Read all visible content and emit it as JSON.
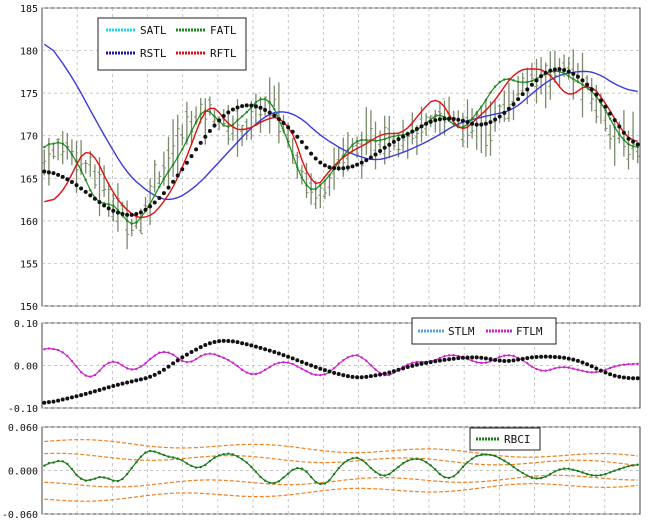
{
  "colors": {
    "satl": "#22d3ee",
    "fatl": "#1e8a1e",
    "rstl": "#1a1aa8",
    "rftl": "#e01010",
    "price_bars": "#7a8a6a",
    "stlm": "#5aa0e0",
    "ftlm": "#cc22cc",
    "rbci": "#1a7a1a",
    "rbci_bands": "#f08020",
    "grid": "#b4b4b4",
    "black_dots": "#111111",
    "blue_curve": "#3a3ae0"
  },
  "chart_data": [
    {
      "type": "line",
      "panel": "price",
      "ylim": [
        150,
        185
      ],
      "y_ticks": [
        "150",
        "155",
        "160",
        "165",
        "170",
        "175",
        "180",
        "185"
      ],
      "legend": [
        "SATL",
        "FATL",
        "RSTL",
        "RFTL"
      ],
      "legend_placement": "top-left",
      "grid": true,
      "n_bars": 130,
      "price_anchors": [
        [
          0,
          167
        ],
        [
          5,
          169
        ],
        [
          10,
          166
        ],
        [
          14,
          163
        ],
        [
          18,
          160
        ],
        [
          21,
          160
        ],
        [
          24,
          165
        ],
        [
          28,
          168
        ],
        [
          32,
          172
        ],
        [
          36,
          173
        ],
        [
          40,
          171
        ],
        [
          44,
          171
        ],
        [
          47,
          173
        ],
        [
          50,
          174
        ],
        [
          53,
          170
        ],
        [
          56,
          166
        ],
        [
          59,
          163
        ],
        [
          62,
          165
        ],
        [
          65,
          168
        ],
        [
          70,
          169
        ],
        [
          75,
          170
        ],
        [
          80,
          170
        ],
        [
          84,
          171
        ],
        [
          88,
          173
        ],
        [
          92,
          171
        ],
        [
          96,
          171
        ],
        [
          100,
          173
        ],
        [
          104,
          176
        ],
        [
          108,
          177
        ],
        [
          112,
          178
        ],
        [
          116,
          177
        ],
        [
          120,
          174
        ],
        [
          124,
          170
        ],
        [
          129,
          168.5
        ]
      ],
      "series": [
        {
          "name": "RSTL",
          "style": "smooth line",
          "anchors": [
            [
              0,
              181.5
            ],
            [
              6,
              177
            ],
            [
              12,
              171
            ],
            [
              18,
              165.5
            ],
            [
              24,
              162.8
            ],
            [
              28,
              162.3
            ],
            [
              33,
              164
            ],
            [
              39,
              167.5
            ],
            [
              45,
              171
            ],
            [
              50,
              173
            ],
            [
              55,
              172.5
            ],
            [
              60,
              170
            ],
            [
              66,
              168
            ],
            [
              72,
              167
            ],
            [
              78,
              168
            ],
            [
              84,
              169.5
            ],
            [
              90,
              171.5
            ],
            [
              96,
              172.3
            ],
            [
              102,
              173
            ],
            [
              106,
              175
            ],
            [
              111,
              177
            ],
            [
              116,
              177.6
            ],
            [
              120,
              177.5
            ],
            [
              124,
              176
            ],
            [
              129,
              175
            ]
          ]
        },
        {
          "name": "RFTL",
          "style": "smooth line",
          "anchors": [
            [
              0,
              162
            ],
            [
              4,
              163
            ],
            [
              8,
              168
            ],
            [
              10,
              169
            ],
            [
              14,
              164
            ],
            [
              18,
              161
            ],
            [
              22,
              160
            ],
            [
              26,
              162
            ],
            [
              30,
              166
            ],
            [
              34,
              172
            ],
            [
              36,
              174.5
            ],
            [
              40,
              171
            ],
            [
              44,
              170.5
            ],
            [
              48,
              172
            ],
            [
              52,
              172.3
            ],
            [
              56,
              168
            ],
            [
              58,
              163
            ],
            [
              62,
              166
            ],
            [
              66,
              168
            ],
            [
              70,
              169
            ],
            [
              74,
              170.5
            ],
            [
              78,
              170
            ],
            [
              82,
              173
            ],
            [
              86,
              175
            ],
            [
              90,
              170
            ],
            [
              94,
              172
            ],
            [
              98,
              174
            ],
            [
              102,
              177.5
            ],
            [
              106,
              178
            ],
            [
              110,
              177.5
            ],
            [
              114,
              174
            ],
            [
              118,
              176.5
            ],
            [
              122,
              174
            ],
            [
              126,
              170
            ],
            [
              129,
              169
            ]
          ]
        },
        {
          "name": "SATL",
          "style": "dotted line",
          "anchors": [
            [
              0,
              166
            ],
            [
              5,
              165
            ],
            [
              10,
              163
            ],
            [
              15,
              161
            ],
            [
              20,
              160.5
            ],
            [
              25,
              162.5
            ],
            [
              30,
              166
            ],
            [
              35,
              170
            ],
            [
              40,
              173
            ],
            [
              45,
              173.8
            ],
            [
              50,
              172.5
            ],
            [
              55,
              170
            ],
            [
              60,
              166.5
            ],
            [
              65,
              166
            ],
            [
              70,
              167
            ],
            [
              75,
              169
            ],
            [
              80,
              170.5
            ],
            [
              85,
              172
            ],
            [
              90,
              172
            ],
            [
              95,
              171
            ],
            [
              100,
              172.5
            ],
            [
              105,
              175.5
            ],
            [
              110,
              178
            ],
            [
              115,
              177.5
            ],
            [
              120,
              175
            ],
            [
              125,
              171
            ],
            [
              129,
              168.3
            ]
          ]
        },
        {
          "name": "FATL",
          "style": "line",
          "anchors": [
            [
              0,
              168
            ],
            [
              3,
              170
            ],
            [
              6,
              168
            ],
            [
              9,
              165
            ],
            [
              12,
              161
            ],
            [
              15,
              163
            ],
            [
              18,
              159
            ],
            [
              21,
              160
            ],
            [
              24,
              163
            ],
            [
              27,
              166
            ],
            [
              30,
              168
            ],
            [
              33,
              172
            ],
            [
              36,
              174
            ],
            [
              39,
              170
            ],
            [
              42,
              172
            ],
            [
              45,
              173
            ],
            [
              48,
              175.5
            ],
            [
              51,
              172
            ],
            [
              54,
              168
            ],
            [
              57,
              163
            ],
            [
              60,
              164
            ],
            [
              63,
              166
            ],
            [
              66,
              168.5
            ],
            [
              69,
              170
            ],
            [
              72,
              169
            ],
            [
              75,
              170
            ],
            [
              78,
              170
            ],
            [
              81,
              170.5
            ],
            [
              84,
              172
            ],
            [
              87,
              173
            ],
            [
              90,
              170
            ],
            [
              93,
              172
            ],
            [
              96,
              174
            ],
            [
              99,
              177
            ],
            [
              102,
              176.5
            ],
            [
              105,
              176
            ],
            [
              108,
              177
            ],
            [
              111,
              178
            ],
            [
              114,
              177
            ],
            [
              117,
              176
            ],
            [
              120,
              175
            ],
            [
              123,
              172
            ],
            [
              126,
              169
            ],
            [
              129,
              168.5
            ]
          ]
        }
      ]
    },
    {
      "type": "line",
      "panel": "oscillator",
      "ylim": [
        -0.1,
        0.1
      ],
      "y_ticks": [
        "0.10",
        "0.00",
        "-0.10"
      ],
      "legend": [
        "STLM",
        "FTLM"
      ],
      "legend_placement": "top-right",
      "grid": true,
      "series": [
        {
          "name": "STLM",
          "style": "dotted line",
          "anchors": [
            [
              0,
              -0.09
            ],
            [
              8,
              -0.07
            ],
            [
              16,
              -0.045
            ],
            [
              24,
              -0.025
            ],
            [
              30,
              0.02
            ],
            [
              36,
              0.055
            ],
            [
              40,
              0.06
            ],
            [
              46,
              0.045
            ],
            [
              52,
              0.025
            ],
            [
              58,
              0.0
            ],
            [
              62,
              -0.015
            ],
            [
              68,
              -0.03
            ],
            [
              74,
              -0.02
            ],
            [
              80,
              0.0
            ],
            [
              86,
              0.012
            ],
            [
              92,
              0.02
            ],
            [
              96,
              0.018
            ],
            [
              100,
              0.008
            ],
            [
              104,
              0.016
            ],
            [
              108,
              0.022
            ],
            [
              114,
              0.018
            ],
            [
              118,
              0.004
            ],
            [
              122,
              -0.018
            ],
            [
              126,
              -0.03
            ],
            [
              129,
              -0.03
            ]
          ]
        },
        {
          "name": "FTLM",
          "style": "dotted line",
          "anchors": [
            [
              0,
              0.035
            ],
            [
              3,
              0.045
            ],
            [
              7,
              0.0
            ],
            [
              10,
              -0.045
            ],
            [
              14,
              0.02
            ],
            [
              17,
              0.0
            ],
            [
              20,
              -0.02
            ],
            [
              23,
              0.02
            ],
            [
              27,
              0.04
            ],
            [
              31,
              -0.005
            ],
            [
              35,
              0.035
            ],
            [
              38,
              0.022
            ],
            [
              41,
              0.01
            ],
            [
              45,
              -0.03
            ],
            [
              48,
              -0.01
            ],
            [
              52,
              0.015
            ],
            [
              56,
              -0.008
            ],
            [
              60,
              -0.03
            ],
            [
              63,
              -0.01
            ],
            [
              66,
              0.028
            ],
            [
              70,
              0.02
            ],
            [
              73,
              -0.03
            ],
            [
              76,
              -0.02
            ],
            [
              80,
              0.012
            ],
            [
              84,
              0.005
            ],
            [
              88,
              0.03
            ],
            [
              92,
              0.015
            ],
            [
              96,
              0.0
            ],
            [
              100,
              0.03
            ],
            [
              104,
              0.015
            ],
            [
              108,
              -0.02
            ],
            [
              112,
              0.0
            ],
            [
              116,
              -0.01
            ],
            [
              120,
              -0.02
            ],
            [
              124,
              0.0
            ],
            [
              129,
              0.005
            ]
          ]
        }
      ]
    },
    {
      "type": "line",
      "panel": "rbci",
      "ylim": [
        -0.06,
        0.06
      ],
      "y_ticks": [
        "0.060",
        "0.000",
        "-0.060"
      ],
      "legend": [
        "RBCI"
      ],
      "legend_placement": "top-right",
      "grid": true,
      "bands": [
        0.04,
        0.02,
        -0.02,
        -0.04
      ],
      "series": [
        {
          "name": "RBCI",
          "style": "dotted line",
          "anchors": [
            [
              0,
              0.0
            ],
            [
              3,
              0.02
            ],
            [
              6,
              0.005
            ],
            [
              9,
              -0.025
            ],
            [
              12,
              0.0
            ],
            [
              15,
              -0.02
            ],
            [
              18,
              -0.01
            ],
            [
              21,
              0.025
            ],
            [
              24,
              0.03
            ],
            [
              27,
              0.015
            ],
            [
              30,
              0.02
            ],
            [
              33,
              -0.005
            ],
            [
              36,
              0.015
            ],
            [
              39,
              0.025
            ],
            [
              42,
              0.022
            ],
            [
              46,
              0.0
            ],
            [
              49,
              -0.025
            ],
            [
              52,
              -0.01
            ],
            [
              56,
              0.012
            ],
            [
              60,
              -0.03
            ],
            [
              63,
              -0.005
            ],
            [
              66,
              0.02
            ],
            [
              70,
              0.015
            ],
            [
              73,
              -0.015
            ],
            [
              76,
              0.0
            ],
            [
              80,
              0.02
            ],
            [
              84,
              0.01
            ],
            [
              88,
              -0.02
            ],
            [
              92,
              0.015
            ],
            [
              96,
              0.025
            ],
            [
              100,
              0.015
            ],
            [
              104,
              -0.005
            ],
            [
              108,
              -0.015
            ],
            [
              112,
              0.005
            ],
            [
              116,
              0.0
            ],
            [
              120,
              -0.01
            ],
            [
              124,
              0.0
            ],
            [
              129,
              0.01
            ]
          ]
        }
      ]
    }
  ]
}
